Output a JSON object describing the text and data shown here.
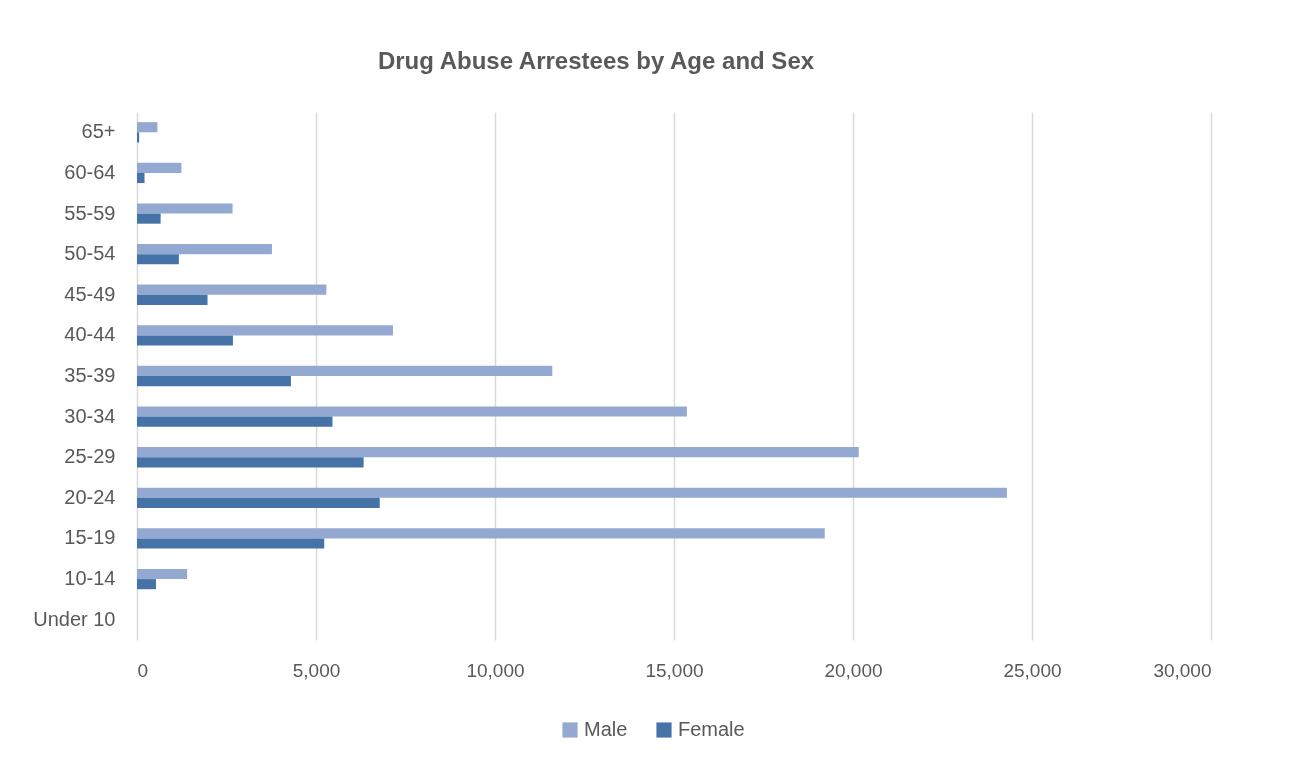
{
  "chart_data": {
    "type": "bar",
    "orientation": "horizontal",
    "title": "Drug Abuse Arrestees by Age and Sex",
    "categories": [
      "65+",
      "60-64",
      "55-59",
      "50-54",
      "45-49",
      "40-44",
      "35-39",
      "30-34",
      "25-29",
      "20-24",
      "15-19",
      "10-14",
      "Under 10"
    ],
    "series": [
      {
        "name": "Male",
        "color": "#94a9d1",
        "values": [
          570,
          1240,
          2670,
          3770,
          5290,
          7150,
          11600,
          15360,
          20160,
          24300,
          19210,
          1400,
          0
        ]
      },
      {
        "name": "Female",
        "color": "#4673a7",
        "values": [
          60,
          210,
          660,
          1170,
          1970,
          2680,
          4300,
          5460,
          6330,
          6780,
          5230,
          530,
          0
        ]
      }
    ],
    "xlim": [
      0,
      30000
    ],
    "xticks": [
      0,
      {
        "value": 5000,
        "label": "5,000"
      },
      {
        "value": 10000,
        "label": "10,000"
      },
      {
        "value": 15000,
        "label": "15,000"
      },
      {
        "value": 20000,
        "label": "20,000"
      },
      {
        "value": 25000,
        "label": "25,000"
      },
      {
        "value": 30000,
        "label": "30,000"
      }
    ],
    "grid": "x",
    "legend": "bottom"
  }
}
